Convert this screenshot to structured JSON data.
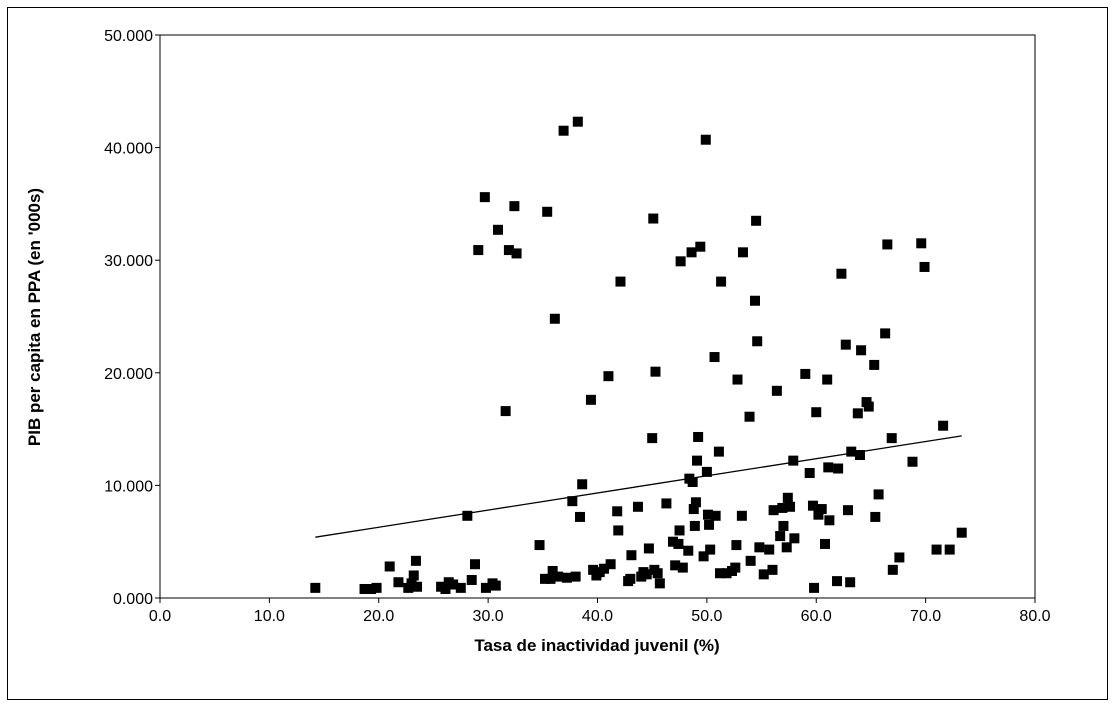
{
  "chart_data": {
    "type": "scatter",
    "title": "",
    "xlabel": "Tasa de inactividad juvenil (%)",
    "ylabel": "PIB per capita en PPA (en '000s)",
    "xlim": [
      0,
      80
    ],
    "ylim": [
      0,
      50
    ],
    "xticks": [
      0,
      10,
      20,
      30,
      40,
      50,
      60,
      70,
      80
    ],
    "xtick_labels": [
      "0.0",
      "10.0",
      "20.0",
      "30.0",
      "40.0",
      "50.0",
      "60.0",
      "70.0",
      "80.0"
    ],
    "yticks": [
      0,
      10,
      20,
      30,
      40,
      50
    ],
    "ytick_labels": [
      "0.000",
      "10.000",
      "20.000",
      "30.000",
      "40.000",
      "50.000"
    ],
    "grid": false,
    "legend": "none",
    "marker": "square",
    "marker_color": "#000000",
    "trendline": {
      "x": [
        14.2,
        73.3
      ],
      "y": [
        5.4,
        14.4
      ]
    },
    "points": [
      [
        14.2,
        0.9
      ],
      [
        18.7,
        0.8
      ],
      [
        19.3,
        0.8
      ],
      [
        19.8,
        0.9
      ],
      [
        21.0,
        2.8
      ],
      [
        21.8,
        1.4
      ],
      [
        22.7,
        0.9
      ],
      [
        23.0,
        1.3
      ],
      [
        23.2,
        2.0
      ],
      [
        23.4,
        3.3
      ],
      [
        23.5,
        1.0
      ],
      [
        25.7,
        1.0
      ],
      [
        26.1,
        0.8
      ],
      [
        26.4,
        1.4
      ],
      [
        26.8,
        1.2
      ],
      [
        27.5,
        0.9
      ],
      [
        28.1,
        7.3
      ],
      [
        28.5,
        1.6
      ],
      [
        28.8,
        3.0
      ],
      [
        29.1,
        30.9
      ],
      [
        29.7,
        35.6
      ],
      [
        29.8,
        0.9
      ],
      [
        30.4,
        1.3
      ],
      [
        30.7,
        1.1
      ],
      [
        30.9,
        32.7
      ],
      [
        31.6,
        16.6
      ],
      [
        31.9,
        30.9
      ],
      [
        32.4,
        34.8
      ],
      [
        32.6,
        30.6
      ],
      [
        34.7,
        4.7
      ],
      [
        35.2,
        1.7
      ],
      [
        35.4,
        34.3
      ],
      [
        35.7,
        1.7
      ],
      [
        35.9,
        2.4
      ],
      [
        36.1,
        24.8
      ],
      [
        36.4,
        1.9
      ],
      [
        36.9,
        41.5
      ],
      [
        37.2,
        1.8
      ],
      [
        37.7,
        8.6
      ],
      [
        38.0,
        1.9
      ],
      [
        38.2,
        42.3
      ],
      [
        38.4,
        7.2
      ],
      [
        38.6,
        10.1
      ],
      [
        39.4,
        17.6
      ],
      [
        39.6,
        2.5
      ],
      [
        39.9,
        2.0
      ],
      [
        40.2,
        2.3
      ],
      [
        40.6,
        2.6
      ],
      [
        41.0,
        19.7
      ],
      [
        41.2,
        3.0
      ],
      [
        41.8,
        7.7
      ],
      [
        41.9,
        6.0
      ],
      [
        42.1,
        28.1
      ],
      [
        42.8,
        1.5
      ],
      [
        43.0,
        1.7
      ],
      [
        43.1,
        3.8
      ],
      [
        43.7,
        8.1
      ],
      [
        44.0,
        1.9
      ],
      [
        44.2,
        2.3
      ],
      [
        44.5,
        2.1
      ],
      [
        44.7,
        4.4
      ],
      [
        45.0,
        14.2
      ],
      [
        45.1,
        33.7
      ],
      [
        45.2,
        2.5
      ],
      [
        45.3,
        20.1
      ],
      [
        45.5,
        2.2
      ],
      [
        45.7,
        1.3
      ],
      [
        46.3,
        8.4
      ],
      [
        46.9,
        5.0
      ],
      [
        47.1,
        2.9
      ],
      [
        47.4,
        4.8
      ],
      [
        47.5,
        6.0
      ],
      [
        47.6,
        29.9
      ],
      [
        47.8,
        2.7
      ],
      [
        48.3,
        4.2
      ],
      [
        48.4,
        10.6
      ],
      [
        48.6,
        30.7
      ],
      [
        48.7,
        10.3
      ],
      [
        48.8,
        7.9
      ],
      [
        48.9,
        6.4
      ],
      [
        49.0,
        8.5
      ],
      [
        49.1,
        12.2
      ],
      [
        49.2,
        14.3
      ],
      [
        49.4,
        31.2
      ],
      [
        49.7,
        3.7
      ],
      [
        49.9,
        40.7
      ],
      [
        50.0,
        11.2
      ],
      [
        50.1,
        7.4
      ],
      [
        50.2,
        6.5
      ],
      [
        50.3,
        4.3
      ],
      [
        50.7,
        21.4
      ],
      [
        50.8,
        7.3
      ],
      [
        51.1,
        13.0
      ],
      [
        51.2,
        2.2
      ],
      [
        51.3,
        28.1
      ],
      [
        51.8,
        2.2
      ],
      [
        52.3,
        2.4
      ],
      [
        52.6,
        2.7
      ],
      [
        52.7,
        4.7
      ],
      [
        52.8,
        19.4
      ],
      [
        53.2,
        7.3
      ],
      [
        53.3,
        30.7
      ],
      [
        53.9,
        16.1
      ],
      [
        54.0,
        3.3
      ],
      [
        54.4,
        26.4
      ],
      [
        54.5,
        33.5
      ],
      [
        54.6,
        22.8
      ],
      [
        54.8,
        4.5
      ],
      [
        55.2,
        2.1
      ],
      [
        55.7,
        4.3
      ],
      [
        56.0,
        2.5
      ],
      [
        56.1,
        7.8
      ],
      [
        56.4,
        18.4
      ],
      [
        56.7,
        5.5
      ],
      [
        56.9,
        8.0
      ],
      [
        57.0,
        6.4
      ],
      [
        57.3,
        4.5
      ],
      [
        57.4,
        8.9
      ],
      [
        57.6,
        8.1
      ],
      [
        57.9,
        12.2
      ],
      [
        58.0,
        5.3
      ],
      [
        59.0,
        19.9
      ],
      [
        59.4,
        11.1
      ],
      [
        59.7,
        8.2
      ],
      [
        59.8,
        0.9
      ],
      [
        60.0,
        16.5
      ],
      [
        60.2,
        7.4
      ],
      [
        60.5,
        7.9
      ],
      [
        60.8,
        4.8
      ],
      [
        61.0,
        19.4
      ],
      [
        61.1,
        11.6
      ],
      [
        61.2,
        6.9
      ],
      [
        61.9,
        1.5
      ],
      [
        62.0,
        11.5
      ],
      [
        62.3,
        28.8
      ],
      [
        62.7,
        22.5
      ],
      [
        62.9,
        7.8
      ],
      [
        63.1,
        1.4
      ],
      [
        63.2,
        13.0
      ],
      [
        63.8,
        16.4
      ],
      [
        64.0,
        12.7
      ],
      [
        64.1,
        22.0
      ],
      [
        64.6,
        17.4
      ],
      [
        64.8,
        17.0
      ],
      [
        65.3,
        20.7
      ],
      [
        65.4,
        7.2
      ],
      [
        65.7,
        9.2
      ],
      [
        66.3,
        23.5
      ],
      [
        66.5,
        31.4
      ],
      [
        66.9,
        14.2
      ],
      [
        67.0,
        2.5
      ],
      [
        67.6,
        3.6
      ],
      [
        68.8,
        12.1
      ],
      [
        69.6,
        31.5
      ],
      [
        69.9,
        29.4
      ],
      [
        71.0,
        4.3
      ],
      [
        71.6,
        15.3
      ],
      [
        72.2,
        4.3
      ],
      [
        73.3,
        5.8
      ]
    ]
  }
}
